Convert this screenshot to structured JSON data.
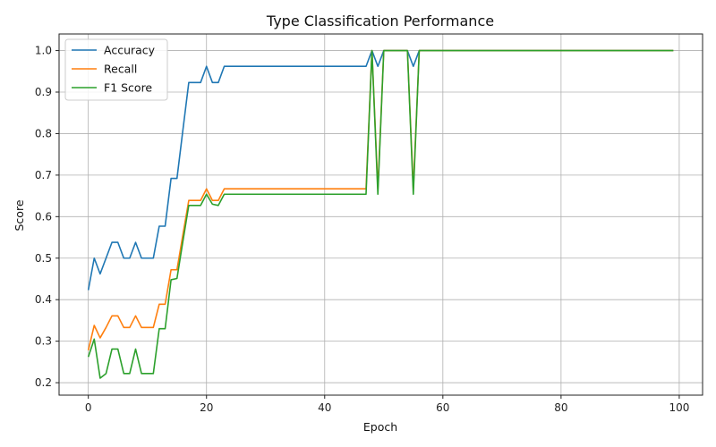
{
  "chart_data": {
    "type": "line",
    "title": "Type Classification Performance",
    "xlabel": "Epoch",
    "ylabel": "Score",
    "xlim": [
      -4.95,
      103.95
    ],
    "ylim": [
      0.17,
      1.04
    ],
    "xticks": [
      0,
      20,
      40,
      60,
      80,
      100
    ],
    "yticks": [
      0.2,
      0.3,
      0.4,
      0.5,
      0.6,
      0.7,
      0.8,
      0.9,
      1.0
    ],
    "grid": true,
    "legend_position": "top-left",
    "series": [
      {
        "name": "Accuracy",
        "color": "#1f77b4",
        "x": [
          0,
          1,
          2,
          3,
          4,
          5,
          6,
          7,
          8,
          9,
          10,
          11,
          12,
          13,
          14,
          15,
          16,
          17,
          18,
          19,
          20,
          21,
          22,
          23,
          47,
          48,
          49,
          50,
          51,
          52,
          53,
          54,
          55,
          56,
          99
        ],
        "y": [
          0.423,
          0.5,
          0.462,
          0.5,
          0.538,
          0.538,
          0.5,
          0.5,
          0.538,
          0.5,
          0.5,
          0.5,
          0.577,
          0.577,
          0.692,
          0.692,
          0.808,
          0.923,
          0.923,
          0.923,
          0.962,
          0.923,
          0.923,
          0.962,
          0.962,
          1.0,
          0.962,
          1.0,
          1.0,
          1.0,
          1.0,
          1.0,
          0.962,
          1.0,
          1.0
        ]
      },
      {
        "name": "Recall",
        "color": "#ff7f0e",
        "x": [
          0,
          1,
          2,
          3,
          4,
          5,
          6,
          7,
          8,
          9,
          10,
          11,
          12,
          13,
          14,
          15,
          16,
          17,
          18,
          19,
          20,
          21,
          22,
          23,
          47,
          48,
          49,
          50,
          51,
          52,
          53,
          54,
          55,
          56,
          99
        ],
        "y": [
          0.278,
          0.338,
          0.308,
          0.333,
          0.361,
          0.361,
          0.333,
          0.333,
          0.361,
          0.333,
          0.333,
          0.333,
          0.389,
          0.389,
          0.472,
          0.472,
          0.556,
          0.639,
          0.639,
          0.639,
          0.667,
          0.639,
          0.639,
          0.667,
          0.667,
          1.0,
          0.667,
          1.0,
          1.0,
          1.0,
          1.0,
          1.0,
          0.667,
          1.0,
          1.0
        ]
      },
      {
        "name": "F1 Score",
        "color": "#2ca02c",
        "x": [
          0,
          1,
          2,
          3,
          4,
          5,
          6,
          7,
          8,
          9,
          10,
          11,
          12,
          13,
          14,
          15,
          16,
          17,
          18,
          19,
          20,
          21,
          22,
          23,
          47,
          48,
          49,
          50,
          51,
          52,
          53,
          54,
          55,
          56,
          99
        ],
        "y": [
          0.262,
          0.305,
          0.211,
          0.222,
          0.281,
          0.281,
          0.222,
          0.222,
          0.281,
          0.222,
          0.222,
          0.222,
          0.33,
          0.33,
          0.448,
          0.451,
          0.54,
          0.627,
          0.627,
          0.627,
          0.654,
          0.63,
          0.627,
          0.654,
          0.654,
          1.0,
          0.654,
          1.0,
          1.0,
          1.0,
          1.0,
          1.0,
          0.654,
          1.0,
          1.0
        ]
      }
    ]
  }
}
